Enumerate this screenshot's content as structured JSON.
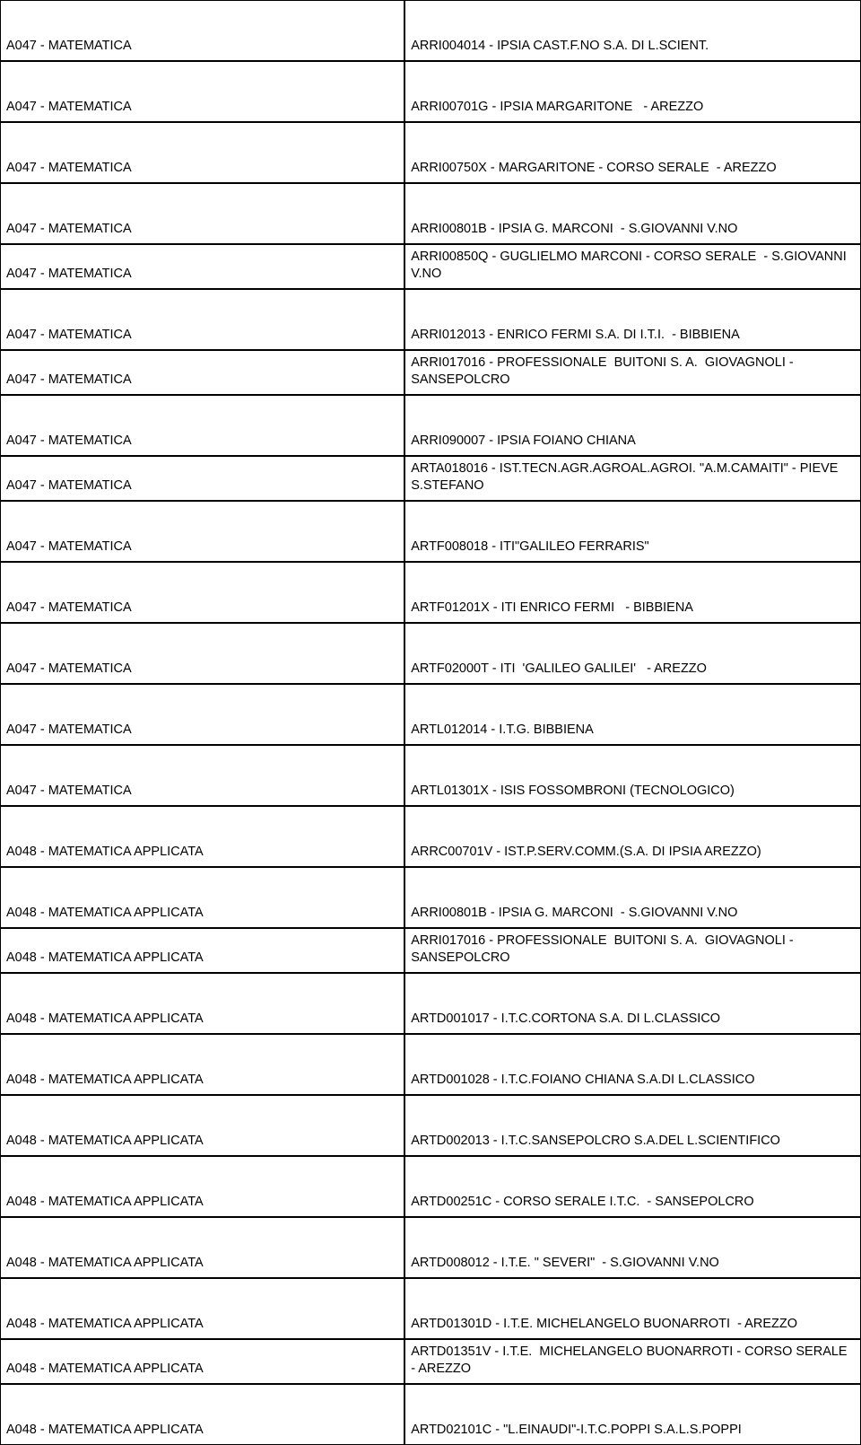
{
  "table": {
    "font_size": 14.5,
    "border_color": "#000000",
    "background_color": "#ffffff",
    "text_color": "#000000",
    "rows": [
      {
        "left": "A047 - MATEMATICA",
        "right": "ARRI004014 - IPSIA CAST.F.NO S.A. DI L.SCIENT.",
        "tall": true
      },
      {
        "left": "A047 - MATEMATICA",
        "right": "ARRI00701G - IPSIA MARGARITONE   - AREZZO",
        "tall": true
      },
      {
        "left": "A047 - MATEMATICA",
        "right": "ARRI00750X - MARGARITONE - CORSO SERALE  - AREZZO",
        "tall": true
      },
      {
        "left": "A047 - MATEMATICA",
        "right": "ARRI00801B - IPSIA G. MARCONI  - S.GIOVANNI V.NO",
        "tall": true
      },
      {
        "left": "A047 - MATEMATICA",
        "right": "ARRI00850Q - GUGLIELMO MARCONI - CORSO SERALE  - S.GIOVANNI V.NO",
        "tall": false
      },
      {
        "left": "A047 - MATEMATICA",
        "right": "ARRI012013 - ENRICO FERMI S.A. DI I.T.I.  - BIBBIENA",
        "tall": true
      },
      {
        "left": "A047 - MATEMATICA",
        "right": "ARRI017016 - PROFESSIONALE  BUITONI S. A.  GIOVAGNOLI - SANSEPOLCRO",
        "tall": false
      },
      {
        "left": "A047 - MATEMATICA",
        "right": "ARRI090007 - IPSIA FOIANO CHIANA",
        "tall": true
      },
      {
        "left": "A047 - MATEMATICA",
        "right": "ARTA018016 - IST.TECN.AGR.AGROAL.AGROI. \"A.M.CAMAITI\" - PIEVE S.STEFANO",
        "tall": false
      },
      {
        "left": "A047 - MATEMATICA",
        "right": "ARTF008018 - ITI\"GALILEO FERRARIS\"",
        "tall": true
      },
      {
        "left": "A047 - MATEMATICA",
        "right": "ARTF01201X - ITI ENRICO FERMI   - BIBBIENA",
        "tall": true
      },
      {
        "left": "A047 - MATEMATICA",
        "right": "ARTF02000T - ITI  'GALILEO GALILEI'   - AREZZO",
        "tall": true
      },
      {
        "left": "A047 - MATEMATICA",
        "right": "ARTL012014 - I.T.G. BIBBIENA",
        "tall": true
      },
      {
        "left": "A047 - MATEMATICA",
        "right": "ARTL01301X - ISIS FOSSOMBRONI (TECNOLOGICO)",
        "tall": true
      },
      {
        "left": "A048 - MATEMATICA APPLICATA",
        "right": "ARRC00701V - IST.P.SERV.COMM.(S.A. DI IPSIA AREZZO)",
        "tall": true
      },
      {
        "left": "A048 - MATEMATICA APPLICATA",
        "right": "ARRI00801B - IPSIA G. MARCONI  - S.GIOVANNI V.NO",
        "tall": true
      },
      {
        "left": "A048 - MATEMATICA APPLICATA",
        "right": "ARRI017016 - PROFESSIONALE  BUITONI S. A.  GIOVAGNOLI - SANSEPOLCRO",
        "tall": false
      },
      {
        "left": "A048 - MATEMATICA APPLICATA",
        "right": "ARTD001017 - I.T.C.CORTONA S.A. DI L.CLASSICO",
        "tall": true
      },
      {
        "left": "A048 - MATEMATICA APPLICATA",
        "right": "ARTD001028 - I.T.C.FOIANO CHIANA S.A.DI L.CLASSICO",
        "tall": true
      },
      {
        "left": "A048 - MATEMATICA APPLICATA",
        "right": "ARTD002013 - I.T.C.SANSEPOLCRO S.A.DEL L.SCIENTIFICO",
        "tall": true
      },
      {
        "left": "A048 - MATEMATICA APPLICATA",
        "right": "ARTD00251C - CORSO SERALE I.T.C.  - SANSEPOLCRO",
        "tall": true
      },
      {
        "left": "A048 - MATEMATICA APPLICATA",
        "right": "ARTD008012 - I.T.E. \" SEVERI\"  - S.GIOVANNI V.NO",
        "tall": true
      },
      {
        "left": "A048 - MATEMATICA APPLICATA",
        "right": "ARTD01301D - I.T.E. MICHELANGELO BUONARROTI  - AREZZO",
        "tall": true
      },
      {
        "left": "A048 - MATEMATICA APPLICATA",
        "right": "ARTD01351V - I.T.E.  MICHELANGELO BUONARROTI - CORSO SERALE - AREZZO",
        "tall": false
      },
      {
        "left": "A048 - MATEMATICA APPLICATA",
        "right": "ARTD02101C - \"L.EINAUDI\"-I.T.C.POPPI S.A.L.S.POPPI",
        "tall": true
      }
    ]
  }
}
